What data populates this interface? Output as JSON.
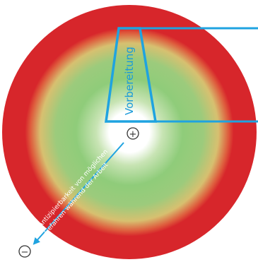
{
  "diagram": {
    "segment_label": "Vorbereitung",
    "axis_label_line1": "Antizipierbarkeit von möglichen",
    "axis_label_line2": "Gefahren während der Arbeit",
    "plus_symbol": "+",
    "minus_symbol": "−",
    "colors": {
      "outer_ring": "#d7262b",
      "mid_gradient": "#f0c06a",
      "green": "#8fcc7a",
      "center": "#ffffff",
      "accent": "#1fa3e0",
      "text_blue": "#1a9ad9",
      "symbol": "#333333"
    }
  }
}
